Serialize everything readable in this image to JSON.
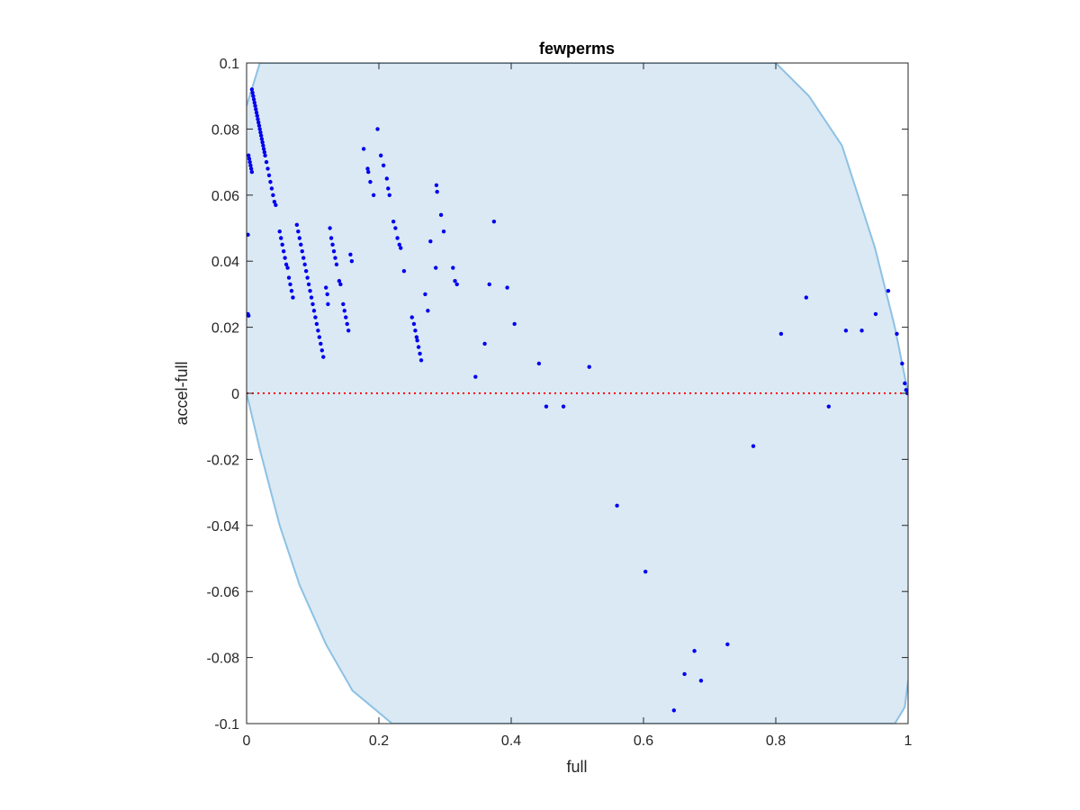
{
  "chart_data": {
    "type": "scatter",
    "title": "fewperms",
    "xlabel": "full",
    "ylabel": "accel-full",
    "xlim": [
      0,
      1
    ],
    "ylim": [
      -0.1,
      0.1
    ],
    "xticks": [
      0,
      0.2,
      0.4,
      0.6,
      0.8,
      1
    ],
    "xtick_labels": [
      "0",
      "0.2",
      "0.4",
      "0.6",
      "0.8",
      "1"
    ],
    "yticks": [
      -0.1,
      -0.08,
      -0.06,
      -0.04,
      -0.02,
      0,
      0.02,
      0.04,
      0.06,
      0.08,
      0.1
    ],
    "ytick_labels": [
      "-0.1",
      "-0.08",
      "-0.06",
      "-0.04",
      "-0.02",
      "0",
      "0.02",
      "0.04",
      "0.06",
      "0.08",
      "0.1"
    ],
    "grid": false,
    "reference_line": {
      "y": 0,
      "color": "#ff0000",
      "style": "dotted"
    },
    "region": {
      "upper": [
        [
          0,
          0.087
        ],
        [
          0.02,
          0.1
        ],
        [
          0.8,
          0.1
        ],
        [
          0.85,
          0.09
        ],
        [
          0.9,
          0.075
        ],
        [
          0.95,
          0.044
        ],
        [
          0.98,
          0.02
        ],
        [
          1,
          0
        ]
      ],
      "lower": [
        [
          0,
          0
        ],
        [
          0.02,
          -0.017
        ],
        [
          0.05,
          -0.04
        ],
        [
          0.08,
          -0.058
        ],
        [
          0.12,
          -0.076
        ],
        [
          0.16,
          -0.09
        ],
        [
          0.22,
          -0.1
        ],
        [
          0.98,
          -0.1
        ],
        [
          0.995,
          -0.095
        ],
        [
          1,
          -0.087
        ]
      ],
      "fill": "#dae9f4",
      "stroke": "#8dc1e3"
    },
    "point_color": "#0000ee",
    "points": [
      [
        0.002,
        0.024
      ],
      [
        0.003,
        0.0235
      ],
      [
        0.002,
        0.048
      ],
      [
        0.003,
        0.072
      ],
      [
        0.004,
        0.071
      ],
      [
        0.005,
        0.07
      ],
      [
        0.006,
        0.069
      ],
      [
        0.007,
        0.068
      ],
      [
        0.008,
        0.067
      ],
      [
        0.008,
        0.092
      ],
      [
        0.009,
        0.091
      ],
      [
        0.01,
        0.09
      ],
      [
        0.011,
        0.089
      ],
      [
        0.012,
        0.088
      ],
      [
        0.013,
        0.087
      ],
      [
        0.014,
        0.086
      ],
      [
        0.015,
        0.085
      ],
      [
        0.016,
        0.084
      ],
      [
        0.017,
        0.083
      ],
      [
        0.018,
        0.082
      ],
      [
        0.019,
        0.081
      ],
      [
        0.02,
        0.08
      ],
      [
        0.021,
        0.079
      ],
      [
        0.022,
        0.078
      ],
      [
        0.023,
        0.077
      ],
      [
        0.024,
        0.076
      ],
      [
        0.025,
        0.075
      ],
      [
        0.026,
        0.074
      ],
      [
        0.027,
        0.073
      ],
      [
        0.028,
        0.072
      ],
      [
        0.03,
        0.07
      ],
      [
        0.032,
        0.068
      ],
      [
        0.034,
        0.066
      ],
      [
        0.036,
        0.064
      ],
      [
        0.038,
        0.062
      ],
      [
        0.04,
        0.06
      ],
      [
        0.042,
        0.058
      ],
      [
        0.044,
        0.057
      ],
      [
        0.05,
        0.049
      ],
      [
        0.052,
        0.047
      ],
      [
        0.054,
        0.045
      ],
      [
        0.056,
        0.043
      ],
      [
        0.058,
        0.041
      ],
      [
        0.06,
        0.039
      ],
      [
        0.062,
        0.038
      ],
      [
        0.064,
        0.035
      ],
      [
        0.066,
        0.033
      ],
      [
        0.068,
        0.031
      ],
      [
        0.07,
        0.029
      ],
      [
        0.076,
        0.051
      ],
      [
        0.078,
        0.049
      ],
      [
        0.08,
        0.047
      ],
      [
        0.082,
        0.045
      ],
      [
        0.084,
        0.043
      ],
      [
        0.086,
        0.041
      ],
      [
        0.088,
        0.039
      ],
      [
        0.09,
        0.037
      ],
      [
        0.092,
        0.035
      ],
      [
        0.094,
        0.033
      ],
      [
        0.096,
        0.031
      ],
      [
        0.098,
        0.029
      ],
      [
        0.1,
        0.027
      ],
      [
        0.102,
        0.025
      ],
      [
        0.104,
        0.023
      ],
      [
        0.106,
        0.021
      ],
      [
        0.108,
        0.019
      ],
      [
        0.11,
        0.017
      ],
      [
        0.112,
        0.015
      ],
      [
        0.114,
        0.013
      ],
      [
        0.116,
        0.011
      ],
      [
        0.12,
        0.032
      ],
      [
        0.122,
        0.03
      ],
      [
        0.123,
        0.027
      ],
      [
        0.126,
        0.05
      ],
      [
        0.128,
        0.047
      ],
      [
        0.13,
        0.045
      ],
      [
        0.132,
        0.043
      ],
      [
        0.134,
        0.041
      ],
      [
        0.136,
        0.039
      ],
      [
        0.14,
        0.034
      ],
      [
        0.142,
        0.033
      ],
      [
        0.146,
        0.027
      ],
      [
        0.148,
        0.025
      ],
      [
        0.15,
        0.023
      ],
      [
        0.152,
        0.021
      ],
      [
        0.154,
        0.019
      ],
      [
        0.157,
        0.042
      ],
      [
        0.159,
        0.04
      ],
      [
        0.177,
        0.074
      ],
      [
        0.183,
        0.068
      ],
      [
        0.184,
        0.067
      ],
      [
        0.187,
        0.064
      ],
      [
        0.192,
        0.06
      ],
      [
        0.198,
        0.08
      ],
      [
        0.203,
        0.072
      ],
      [
        0.207,
        0.069
      ],
      [
        0.212,
        0.065
      ],
      [
        0.214,
        0.062
      ],
      [
        0.216,
        0.06
      ],
      [
        0.222,
        0.052
      ],
      [
        0.225,
        0.05
      ],
      [
        0.228,
        0.047
      ],
      [
        0.231,
        0.045
      ],
      [
        0.233,
        0.044
      ],
      [
        0.238,
        0.037
      ],
      [
        0.25,
        0.023
      ],
      [
        0.253,
        0.021
      ],
      [
        0.255,
        0.019
      ],
      [
        0.257,
        0.017
      ],
      [
        0.258,
        0.016
      ],
      [
        0.26,
        0.014
      ],
      [
        0.262,
        0.012
      ],
      [
        0.264,
        0.01
      ],
      [
        0.27,
        0.03
      ],
      [
        0.274,
        0.025
      ],
      [
        0.278,
        0.046
      ],
      [
        0.287,
        0.063
      ],
      [
        0.288,
        0.061
      ],
      [
        0.286,
        0.038
      ],
      [
        0.294,
        0.054
      ],
      [
        0.298,
        0.049
      ],
      [
        0.312,
        0.038
      ],
      [
        0.315,
        0.034
      ],
      [
        0.318,
        0.033
      ],
      [
        0.346,
        0.005
      ],
      [
        0.36,
        0.015
      ],
      [
        0.367,
        0.033
      ],
      [
        0.374,
        0.052
      ],
      [
        0.394,
        0.032
      ],
      [
        0.405,
        0.021
      ],
      [
        0.442,
        0.009
      ],
      [
        0.453,
        -0.004
      ],
      [
        0.479,
        -0.004
      ],
      [
        0.518,
        0.008
      ],
      [
        0.56,
        -0.034
      ],
      [
        0.603,
        -0.054
      ],
      [
        0.646,
        -0.096
      ],
      [
        0.662,
        -0.085
      ],
      [
        0.677,
        -0.078
      ],
      [
        0.687,
        -0.087
      ],
      [
        0.727,
        -0.076
      ],
      [
        0.766,
        -0.016
      ],
      [
        0.808,
        0.018
      ],
      [
        0.846,
        0.029
      ],
      [
        0.88,
        -0.004
      ],
      [
        0.906,
        0.019
      ],
      [
        0.93,
        0.019
      ],
      [
        0.951,
        0.024
      ],
      [
        0.97,
        0.031
      ],
      [
        0.983,
        0.018
      ],
      [
        0.991,
        0.009
      ],
      [
        0.995,
        0.003
      ],
      [
        0.997,
        0.001
      ],
      [
        0.999,
        0.0
      ]
    ]
  }
}
